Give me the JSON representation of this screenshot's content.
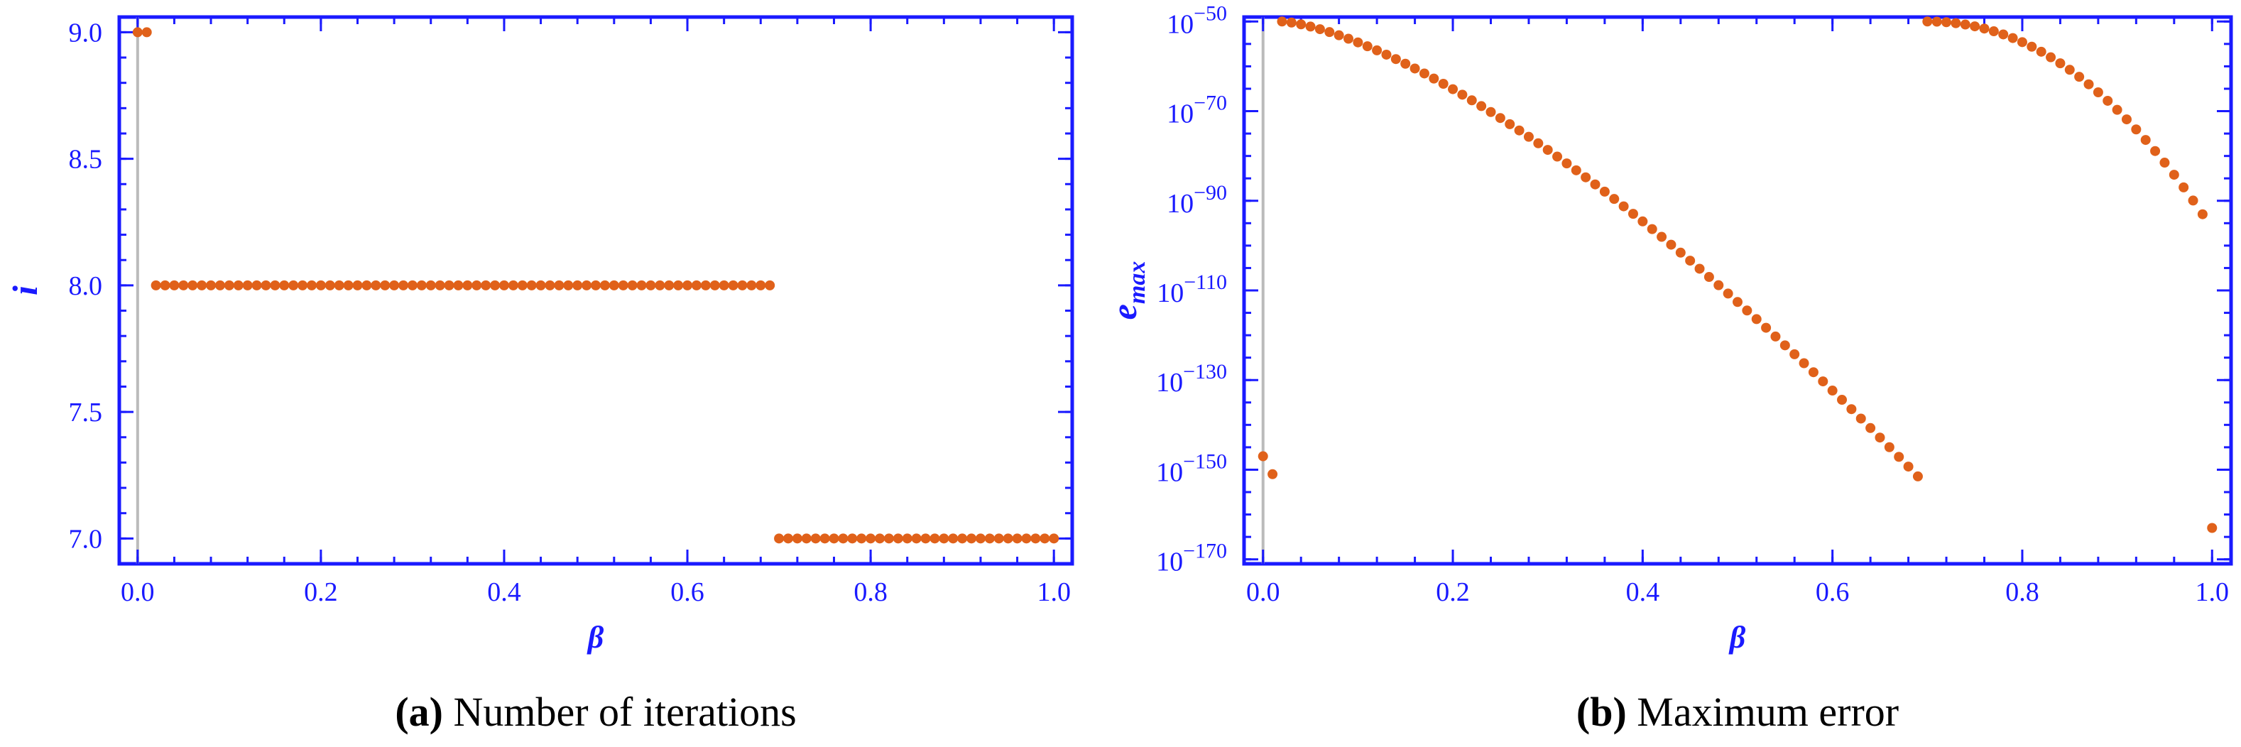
{
  "colors": {
    "axis": "#1a1aff",
    "point": "#e0611a",
    "zero_line": "#bbbbbb"
  },
  "chart_data": [
    {
      "type": "scatter",
      "id": "a",
      "xlabel": "β",
      "ylabel": "i",
      "xlim": [
        -0.02,
        1.02
      ],
      "ylim": [
        6.9,
        9.06
      ],
      "x_ticks": [
        0.0,
        0.2,
        0.4,
        0.6,
        0.8,
        1.0
      ],
      "x_tick_labels": [
        "0.0",
        "0.2",
        "0.4",
        "0.6",
        "0.8",
        "1.0"
      ],
      "y_ticks": [
        7.0,
        7.5,
        8.0,
        8.5,
        9.0
      ],
      "y_tick_labels": [
        "7.0",
        "7.5",
        "8.0",
        "8.5",
        "9.0"
      ],
      "caption_tag": "(a)",
      "caption_text": " Number of iterations",
      "segments": [
        {
          "x_start": 0.0,
          "x_end": 0.01,
          "step": 0.01,
          "value": 9
        },
        {
          "x_start": 0.02,
          "x_end": 0.69,
          "step": 0.01,
          "value": 8
        },
        {
          "x_start": 0.7,
          "x_end": 1.0,
          "step": 0.01,
          "value": 7
        }
      ]
    },
    {
      "type": "scatter",
      "id": "b",
      "yscale": "log",
      "xlabel": "β",
      "ylabel": "e",
      "ylabel_sub": "max",
      "xlim": [
        -0.02,
        1.02
      ],
      "ylim_exp": [
        -171,
        -49
      ],
      "x_ticks": [
        0.0,
        0.2,
        0.4,
        0.6,
        0.8,
        1.0
      ],
      "x_tick_labels": [
        "0.0",
        "0.2",
        "0.4",
        "0.6",
        "0.8",
        "1.0"
      ],
      "y_tick_exps": [
        -50,
        -70,
        -90,
        -110,
        -130,
        -150,
        -170
      ],
      "y_tick_base": "10",
      "y_tick_exp_labels": [
        "−50",
        "−70",
        "−90",
        "−110",
        "−130",
        "−150",
        "−170"
      ],
      "caption_tag": "(b)",
      "caption_text": " Maximum error",
      "isolated_points": [
        {
          "x": 0.0,
          "log10_y": -147
        },
        {
          "x": 0.01,
          "log10_y": -151
        },
        {
          "x": 1.0,
          "log10_y": -163
        }
      ],
      "curves": [
        {
          "x_start": 0.02,
          "x_end": 0.69,
          "step": 0.01,
          "log10_y_start": -50,
          "log10_y_end": -151.5,
          "shape_power": 1.45
        },
        {
          "x_start": 0.7,
          "x_end": 0.99,
          "step": 0.01,
          "log10_y_start": -50,
          "log10_y_end": -93,
          "shape_power": 2.1
        }
      ]
    }
  ]
}
